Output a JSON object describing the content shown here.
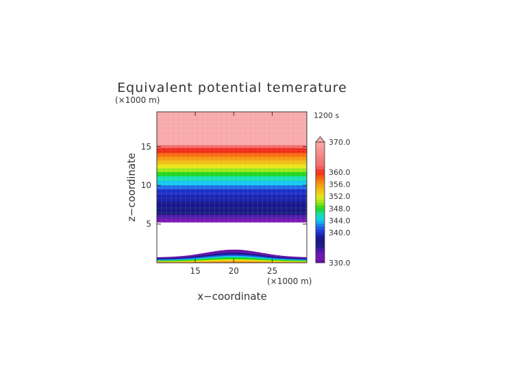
{
  "chart_data": {
    "type": "heatmap",
    "title": "Equivalent potential temerature",
    "time_label": "1200 s",
    "xlabel": "x−coordinate",
    "ylabel": "z−coordinate",
    "x_unit": "(×1000 m)",
    "y_unit": "(×1000 m)",
    "xlim": [
      10,
      29.5
    ],
    "ylim": [
      0,
      19.5
    ],
    "x_ticks": [
      15,
      20,
      25
    ],
    "y_ticks": [
      5,
      10,
      15
    ],
    "grid": false,
    "colorbar": {
      "min": 330,
      "max": 370,
      "labels": [
        "370.0",
        "360.0",
        "356.0",
        "352.0",
        "348.0",
        "344.0",
        "340.0",
        "330.0"
      ],
      "label_values": [
        370,
        360,
        356,
        352,
        348,
        344,
        340,
        330
      ],
      "position": "right"
    },
    "layers": [
      {
        "z_top": 19.5,
        "value": 370
      },
      {
        "z_top": 15.2,
        "value": 362
      },
      {
        "z_top": 14.8,
        "value": 360
      },
      {
        "z_top": 14.2,
        "value": 358
      },
      {
        "z_top": 13.7,
        "value": 356
      },
      {
        "z_top": 13.2,
        "value": 354
      },
      {
        "z_top": 12.7,
        "value": 352
      },
      {
        "z_top": 12.2,
        "value": 350
      },
      {
        "z_top": 11.7,
        "value": 348
      },
      {
        "z_top": 11.2,
        "value": 346
      },
      {
        "z_top": 10.6,
        "value": 344
      },
      {
        "z_top": 10.0,
        "value": 342
      },
      {
        "z_top": 9.5,
        "value": 340
      },
      {
        "z_top": 8.7,
        "value": 339
      },
      {
        "z_top": 7.9,
        "value": 338
      },
      {
        "z_top": 7.2,
        "value": 337
      },
      {
        "z_top": 6.7,
        "value": 336
      },
      {
        "z_top": 6.2,
        "value": 334
      },
      {
        "z_top": 5.7,
        "value": 332
      },
      {
        "z_top": 5.2,
        "value": 330
      }
    ],
    "gap": {
      "z_bottom": 0.6,
      "z_top": 5.2
    },
    "bubble": {
      "x_center": 20,
      "half_width": 9,
      "base_top": 0.7,
      "contours": [
        {
          "peak": 1.7,
          "value": 331
        },
        {
          "peak": 1.5,
          "value": 333
        },
        {
          "peak": 1.3,
          "value": 337
        },
        {
          "peak": 1.1,
          "value": 341
        },
        {
          "peak": 0.9,
          "value": 344
        },
        {
          "peak": 0.7,
          "value": 348
        },
        {
          "peak": 0.45,
          "value": 352
        },
        {
          "peak": 0.25,
          "value": 356
        }
      ]
    }
  }
}
